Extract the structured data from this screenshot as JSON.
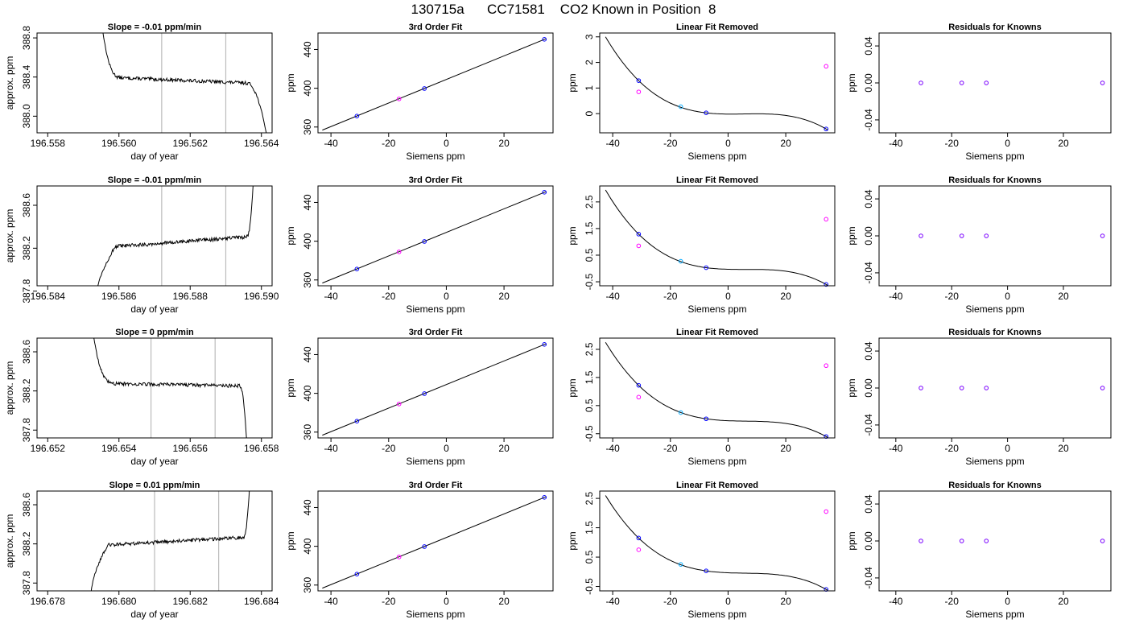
{
  "title": "130715a      CC71581    CO2 Known in Position  8",
  "style": {
    "trace_color": "#000000",
    "window_line_color": "#bbbbbb",
    "known_point_color": "#0000ff",
    "ref_point_color": "#00aaff",
    "residual_point_color": "#ff00ff",
    "axis_color": "#000000"
  },
  "chart_data": [
    {
      "type": "line",
      "row": 1,
      "column": 1,
      "title": "Slope =  -0.01  ppm/min",
      "xlabel": "day of year",
      "ylabel": "approx. ppm",
      "xlim": [
        196.5577,
        196.5643
      ],
      "ylim": [
        387.83,
        388.85
      ],
      "xticks": [
        196.558,
        196.56,
        196.562,
        196.564
      ],
      "xtick_labels": [
        "196.558",
        "196.560",
        "196.562",
        "196.564"
      ],
      "yticks": [
        388.0,
        388.4,
        388.8
      ],
      "ytick_labels": [
        "388.0",
        "388.4",
        "388.8"
      ],
      "window": [
        196.5612,
        196.563
      ],
      "trace": {
        "x_start": 196.5595,
        "x_end": 196.5642,
        "y_start": 389.0,
        "plateau_start": 388.4,
        "plateau_end": 388.33,
        "y_end": 387.7,
        "rise": 0,
        "rise_end": 196.5601,
        "fall_start": 196.5636
      }
    },
    {
      "type": "line",
      "row": 1,
      "column": 2,
      "title": "3rd Order Fit",
      "xlabel": "Siemens ppm",
      "ylabel": "ppm",
      "xlim": [
        -44.5,
        37
      ],
      "ylim": [
        354,
        457
      ],
      "xticks": [
        -40,
        -20,
        0,
        20
      ],
      "xtick_labels": [
        "-40",
        "-20",
        "0",
        "20"
      ],
      "yticks": [
        360,
        400,
        440
      ],
      "ytick_labels": [
        "360",
        "400",
        "440"
      ],
      "fit_line": {
        "x": [
          -43,
          34.5
        ],
        "y": [
          356.8,
          451.0
        ]
      },
      "points": [
        {
          "x": -31.0,
          "y": 371.3,
          "kind": "known"
        },
        {
          "x": -16.4,
          "y": 389.0,
          "kind": "residual"
        },
        {
          "x": -7.6,
          "y": 399.7,
          "kind": "known"
        },
        {
          "x": 34.0,
          "y": 450.5,
          "kind": "known"
        }
      ]
    },
    {
      "type": "line",
      "row": 1,
      "column": 3,
      "title": "Linear Fit Removed",
      "xlabel": "Siemens ppm",
      "ylabel": "ppm",
      "xlim": [
        -44.5,
        37
      ],
      "ylim": [
        -0.75,
        3.15
      ],
      "xticks": [
        -40,
        -20,
        0,
        20
      ],
      "xtick_labels": [
        "-40",
        "-20",
        "0",
        "20"
      ],
      "yticks": [
        0,
        1,
        2,
        3
      ],
      "ytick_labels": [
        "0",
        "1",
        "2",
        "3"
      ],
      "curve": {
        "a": 0.02,
        "b": -0.0037,
        "c": -6.7e-05,
        "d": 2.5e-06,
        "x0": -42.5,
        "x1": 34.5
      },
      "points": [
        {
          "x": -31.0,
          "y": 1.29,
          "kind": "known"
        },
        {
          "x": -31.0,
          "y": 0.85,
          "kind": "residual"
        },
        {
          "x": -16.4,
          "y": 0.27,
          "kind": "ref"
        },
        {
          "x": -7.6,
          "y": 0.03,
          "kind": "known"
        },
        {
          "x": 34.0,
          "y": -0.6,
          "kind": "known"
        },
        {
          "x": 34.0,
          "y": 1.85,
          "kind": "residual"
        }
      ]
    },
    {
      "type": "scatter",
      "row": 1,
      "column": 4,
      "title": "Residuals for Knowns",
      "xlabel": "Siemens ppm",
      "ylabel": "ppm",
      "xlim": [
        -46,
        37
      ],
      "ylim": [
        -0.054,
        0.054
      ],
      "xticks": [
        -40,
        -20,
        0,
        20
      ],
      "xtick_labels": [
        "-40",
        "-20",
        "0",
        "20"
      ],
      "yticks": [
        -0.04,
        0.0,
        0.04
      ],
      "ytick_labels": [
        "-0.04",
        "0.00",
        "0.04"
      ],
      "points": [
        {
          "x": -31.0,
          "y": 0
        },
        {
          "x": -16.4,
          "y": 0
        },
        {
          "x": -7.6,
          "y": 0
        },
        {
          "x": 34.0,
          "y": 0
        }
      ]
    },
    {
      "type": "line",
      "row": 2,
      "column": 1,
      "title": "Slope =  -0.01  ppm/min",
      "xlabel": "day of year",
      "ylabel": "approx. ppm",
      "xlim": [
        196.5837,
        196.5903
      ],
      "ylim": [
        387.85,
        388.78
      ],
      "xticks": [
        196.584,
        196.586,
        196.588,
        196.59
      ],
      "xtick_labels": [
        "196.584",
        "196.586",
        "196.588",
        "196.590"
      ],
      "yticks": [
        387.8,
        388.2,
        388.6
      ],
      "ytick_labels": [
        "387.8",
        "388.2",
        "388.6"
      ],
      "window": [
        196.5872,
        196.589
      ],
      "trace": {
        "x_start": 196.5853,
        "x_end": 196.5898,
        "y_start": 387.6,
        "plateau_start": 388.2,
        "plateau_end": 388.31,
        "y_end": 389.0,
        "rise": 1,
        "rise_end": 196.5859,
        "fall_start": 196.5896
      }
    },
    {
      "type": "line",
      "row": 2,
      "column": 2,
      "title": "3rd Order Fit",
      "xlabel": "Siemens ppm",
      "ylabel": "ppm",
      "xlim": [
        -44.5,
        37
      ],
      "ylim": [
        354,
        457
      ],
      "xticks": [
        -40,
        -20,
        0,
        20
      ],
      "xtick_labels": [
        "-40",
        "-20",
        "0",
        "20"
      ],
      "yticks": [
        360,
        400,
        440
      ],
      "ytick_labels": [
        "360",
        "400",
        "440"
      ],
      "fit_line": {
        "x": [
          -43,
          34.5
        ],
        "y": [
          356.8,
          451.0
        ]
      },
      "points": [
        {
          "x": -31.0,
          "y": 371.3,
          "kind": "known"
        },
        {
          "x": -16.4,
          "y": 389.0,
          "kind": "residual"
        },
        {
          "x": -7.6,
          "y": 399.7,
          "kind": "known"
        },
        {
          "x": 34.0,
          "y": 450.5,
          "kind": "known"
        }
      ]
    },
    {
      "type": "line",
      "row": 2,
      "column": 3,
      "title": "Linear Fit Removed",
      "xlabel": "Siemens ppm",
      "ylabel": "ppm",
      "xlim": [
        -44.5,
        37
      ],
      "ylim": [
        -0.65,
        3.1
      ],
      "xticks": [
        -40,
        -20,
        0,
        20
      ],
      "xtick_labels": [
        "-40",
        "-20",
        "0",
        "20"
      ],
      "yticks": [
        -0.5,
        0.5,
        1.5,
        2.5
      ],
      "ytick_labels": [
        "-0.5",
        "0.5",
        "1.5",
        "2.5"
      ],
      "curve": {
        "a": 0.02,
        "b": -0.0037,
        "c": -6.7e-05,
        "d": 2.5e-06,
        "x0": -42.5,
        "x1": 34.5
      },
      "points": [
        {
          "x": -31.0,
          "y": 1.29,
          "kind": "known"
        },
        {
          "x": -31.0,
          "y": 0.85,
          "kind": "residual"
        },
        {
          "x": -16.4,
          "y": 0.27,
          "kind": "ref"
        },
        {
          "x": -7.6,
          "y": 0.03,
          "kind": "known"
        },
        {
          "x": 34.0,
          "y": -0.6,
          "kind": "known"
        },
        {
          "x": 34.0,
          "y": 1.85,
          "kind": "residual"
        }
      ]
    },
    {
      "type": "scatter",
      "row": 2,
      "column": 4,
      "title": "Residuals for Knowns",
      "xlabel": "Siemens ppm",
      "ylabel": "ppm",
      "xlim": [
        -46,
        37
      ],
      "ylim": [
        -0.054,
        0.054
      ],
      "xticks": [
        -40,
        -20,
        0,
        20
      ],
      "xtick_labels": [
        "-40",
        "-20",
        "0",
        "20"
      ],
      "yticks": [
        -0.04,
        0.0,
        0.04
      ],
      "ytick_labels": [
        "-0.04",
        "0.00",
        "0.04"
      ],
      "points": [
        {
          "x": -31.0,
          "y": 0
        },
        {
          "x": -16.4,
          "y": 0
        },
        {
          "x": -7.6,
          "y": 0
        },
        {
          "x": 34.0,
          "y": 0
        }
      ]
    },
    {
      "type": "line",
      "row": 3,
      "column": 1,
      "title": "Slope =  0  ppm/min",
      "xlabel": "day of year",
      "ylabel": "approx. ppm",
      "xlim": [
        196.6517,
        196.6583
      ],
      "ylim": [
        387.72,
        388.74
      ],
      "xticks": [
        196.652,
        196.654,
        196.656,
        196.658
      ],
      "xtick_labels": [
        "196.652",
        "196.654",
        "196.656",
        "196.658"
      ],
      "yticks": [
        387.8,
        388.2,
        388.6
      ],
      "ytick_labels": [
        "387.8",
        "388.2",
        "388.6"
      ],
      "window": [
        196.6549,
        196.6567
      ],
      "trace": {
        "x_start": 196.6532,
        "x_end": 196.6576,
        "y_start": 389.0,
        "plateau_start": 388.28,
        "plateau_end": 388.25,
        "y_end": 387.6,
        "rise": 0,
        "rise_end": 196.6539,
        "fall_start": 196.6574
      }
    },
    {
      "type": "line",
      "row": 3,
      "column": 2,
      "title": "3rd Order Fit",
      "xlabel": "Siemens ppm",
      "ylabel": "ppm",
      "xlim": [
        -44.5,
        37
      ],
      "ylim": [
        354,
        457
      ],
      "xticks": [
        -40,
        -20,
        0,
        20
      ],
      "xtick_labels": [
        "-40",
        "-20",
        "0",
        "20"
      ],
      "yticks": [
        360,
        400,
        440
      ],
      "ytick_labels": [
        "360",
        "400",
        "440"
      ],
      "fit_line": {
        "x": [
          -43,
          34.5
        ],
        "y": [
          356.8,
          451.0
        ]
      },
      "points": [
        {
          "x": -31.0,
          "y": 371.3,
          "kind": "known"
        },
        {
          "x": -16.4,
          "y": 389.0,
          "kind": "residual"
        },
        {
          "x": -7.6,
          "y": 399.7,
          "kind": "known"
        },
        {
          "x": 34.0,
          "y": 450.5,
          "kind": "known"
        }
      ]
    },
    {
      "type": "line",
      "row": 3,
      "column": 3,
      "title": "Linear Fit Removed",
      "xlabel": "Siemens ppm",
      "ylabel": "ppm",
      "xlim": [
        -44.5,
        37
      ],
      "ylim": [
        -0.65,
        2.9
      ],
      "xticks": [
        -40,
        -20,
        0,
        20
      ],
      "xtick_labels": [
        "-40",
        "-20",
        "0",
        "20"
      ],
      "yticks": [
        -0.5,
        0.5,
        1.5,
        2.5
      ],
      "ytick_labels": [
        "-0.5",
        "0.5",
        "1.5",
        "2.5"
      ],
      "curve": {
        "a": 0.02,
        "b": -0.0037,
        "c": -6.7e-05,
        "d": 2.5e-06,
        "x0": -42.5,
        "x1": 34.5
      },
      "points": [
        {
          "x": -31.0,
          "y": 1.22,
          "kind": "known"
        },
        {
          "x": -31.0,
          "y": 0.8,
          "kind": "residual"
        },
        {
          "x": -16.4,
          "y": 0.25,
          "kind": "ref"
        },
        {
          "x": -7.6,
          "y": 0.03,
          "kind": "known"
        },
        {
          "x": 34.0,
          "y": -0.6,
          "kind": "known"
        },
        {
          "x": 34.0,
          "y": 1.92,
          "kind": "residual"
        }
      ]
    },
    {
      "type": "scatter",
      "row": 3,
      "column": 4,
      "title": "Residuals for Knowns",
      "xlabel": "Siemens ppm",
      "ylabel": "ppm",
      "xlim": [
        -46,
        37
      ],
      "ylim": [
        -0.054,
        0.054
      ],
      "xticks": [
        -40,
        -20,
        0,
        20
      ],
      "xtick_labels": [
        "-40",
        "-20",
        "0",
        "20"
      ],
      "yticks": [
        -0.04,
        0.0,
        0.04
      ],
      "ytick_labels": [
        "-0.04",
        "0.00",
        "0.04"
      ],
      "points": [
        {
          "x": -31.0,
          "y": 0
        },
        {
          "x": -16.4,
          "y": 0
        },
        {
          "x": -7.6,
          "y": 0
        },
        {
          "x": 34.0,
          "y": 0
        }
      ]
    },
    {
      "type": "line",
      "row": 4,
      "column": 1,
      "title": "Slope =  0.01  ppm/min",
      "xlabel": "day of year",
      "ylabel": "approx. ppm",
      "xlim": [
        196.6777,
        196.6843
      ],
      "ylim": [
        387.72,
        388.74
      ],
      "xticks": [
        196.678,
        196.68,
        196.682,
        196.684
      ],
      "xtick_labels": [
        "196.678",
        "196.680",
        "196.682",
        "196.684"
      ],
      "yticks": [
        387.8,
        388.2,
        388.6
      ],
      "ytick_labels": [
        "387.8",
        "388.2",
        "388.6"
      ],
      "window": [
        196.681,
        196.6828
      ],
      "trace": {
        "x_start": 196.6792,
        "x_end": 196.6837,
        "y_start": 387.6,
        "plateau_start": 388.18,
        "plateau_end": 388.27,
        "y_end": 389.0,
        "rise": 1,
        "rise_end": 196.6797,
        "fall_start": 196.6835
      }
    },
    {
      "type": "line",
      "row": 4,
      "column": 2,
      "title": "3rd Order Fit",
      "xlabel": "Siemens ppm",
      "ylabel": "ppm",
      "xlim": [
        -44.5,
        37
      ],
      "ylim": [
        354,
        457
      ],
      "xticks": [
        -40,
        -20,
        0,
        20
      ],
      "xtick_labels": [
        "-40",
        "-20",
        "0",
        "20"
      ],
      "yticks": [
        360,
        400,
        440
      ],
      "ytick_labels": [
        "360",
        "400",
        "440"
      ],
      "fit_line": {
        "x": [
          -43,
          34.5
        ],
        "y": [
          356.8,
          451.0
        ]
      },
      "points": [
        {
          "x": -31.0,
          "y": 371.3,
          "kind": "known"
        },
        {
          "x": -16.4,
          "y": 389.0,
          "kind": "residual"
        },
        {
          "x": -7.6,
          "y": 399.7,
          "kind": "known"
        },
        {
          "x": 34.0,
          "y": 450.5,
          "kind": "known"
        }
      ]
    },
    {
      "type": "line",
      "row": 4,
      "column": 3,
      "title": "Linear Fit Removed",
      "xlabel": "Siemens ppm",
      "ylabel": "ppm",
      "xlim": [
        -44.5,
        37
      ],
      "ylim": [
        -0.65,
        2.75
      ],
      "xticks": [
        -40,
        -20,
        0,
        20
      ],
      "xtick_labels": [
        "-40",
        "-20",
        "0",
        "20"
      ],
      "yticks": [
        -0.5,
        0.5,
        1.5,
        2.5
      ],
      "ytick_labels": [
        "-0.5",
        "0.5",
        "1.5",
        "2.5"
      ],
      "curve": {
        "a": 0.02,
        "b": -0.0037,
        "c": -6.7e-05,
        "d": 2.5e-06,
        "x0": -42.5,
        "x1": 34.5
      },
      "points": [
        {
          "x": -31.0,
          "y": 1.15,
          "kind": "known"
        },
        {
          "x": -31.0,
          "y": 0.75,
          "kind": "residual"
        },
        {
          "x": -16.4,
          "y": 0.25,
          "kind": "ref"
        },
        {
          "x": -7.6,
          "y": 0.03,
          "kind": "known"
        },
        {
          "x": 34.0,
          "y": -0.6,
          "kind": "known"
        },
        {
          "x": 34.0,
          "y": 2.05,
          "kind": "residual"
        }
      ]
    },
    {
      "type": "scatter",
      "row": 4,
      "column": 4,
      "title": "Residuals for Knowns",
      "xlabel": "Siemens ppm",
      "ylabel": "ppm",
      "xlim": [
        -46,
        37
      ],
      "ylim": [
        -0.054,
        0.054
      ],
      "xticks": [
        -40,
        -20,
        0,
        20
      ],
      "xtick_labels": [
        "-40",
        "-20",
        "0",
        "20"
      ],
      "yticks": [
        -0.04,
        0.0,
        0.04
      ],
      "ytick_labels": [
        "-0.04",
        "0.00",
        "0.04"
      ],
      "points": [
        {
          "x": -31.0,
          "y": 0
        },
        {
          "x": -16.4,
          "y": 0
        },
        {
          "x": -7.6,
          "y": 0
        },
        {
          "x": 34.0,
          "y": 0
        }
      ]
    }
  ]
}
